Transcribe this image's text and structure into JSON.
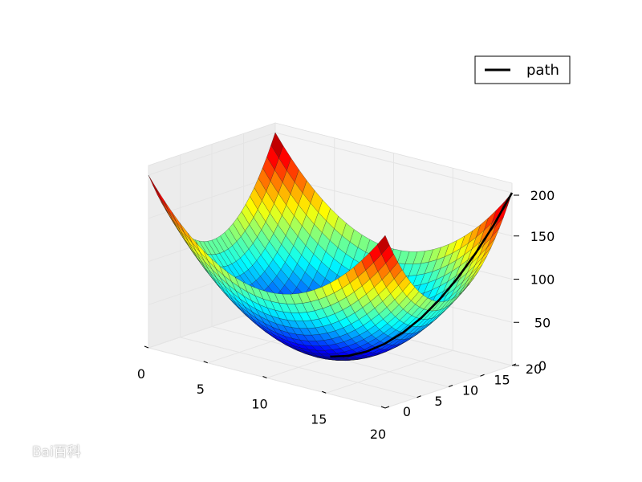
{
  "chart_data": {
    "type": "surface3d",
    "surface": {
      "function": "z = (x - 10)^2 + (y - 10)^2",
      "x_range": [
        0,
        20
      ],
      "y_range": [
        0,
        20
      ],
      "grid_steps": 30,
      "colormap": "jet",
      "z_color_range": [
        0,
        200
      ]
    },
    "series": [
      {
        "name": "path",
        "color": "#000000",
        "x": [
          10,
          11,
          12,
          13,
          14,
          15,
          16,
          17,
          18,
          19,
          20
        ],
        "y": [
          10,
          11,
          12,
          13,
          14,
          15,
          16,
          17,
          18,
          19,
          20
        ],
        "z": [
          0,
          2,
          8,
          18,
          32,
          50,
          72,
          98,
          128,
          162,
          200
        ]
      }
    ],
    "axes": {
      "x": {
        "range": [
          0,
          20
        ],
        "ticks": [
          0,
          5,
          10,
          15,
          20
        ],
        "tick_labels": [
          "0",
          "5",
          "10",
          "15",
          "20"
        ]
      },
      "y": {
        "range": [
          0,
          20
        ],
        "ticks": [
          0,
          5,
          10,
          15,
          20
        ],
        "tick_labels": [
          "0",
          "5",
          "10",
          "15",
          "20"
        ]
      },
      "z": {
        "range": [
          0,
          200
        ],
        "ticks": [
          0,
          50,
          100,
          150,
          200
        ],
        "tick_labels": [
          "0",
          "50",
          "100",
          "150",
          "200"
        ]
      }
    },
    "grid": true,
    "legend": {
      "placement": "top-right",
      "entries": [
        "path"
      ]
    }
  },
  "watermark": {
    "text": "Bai百科"
  }
}
